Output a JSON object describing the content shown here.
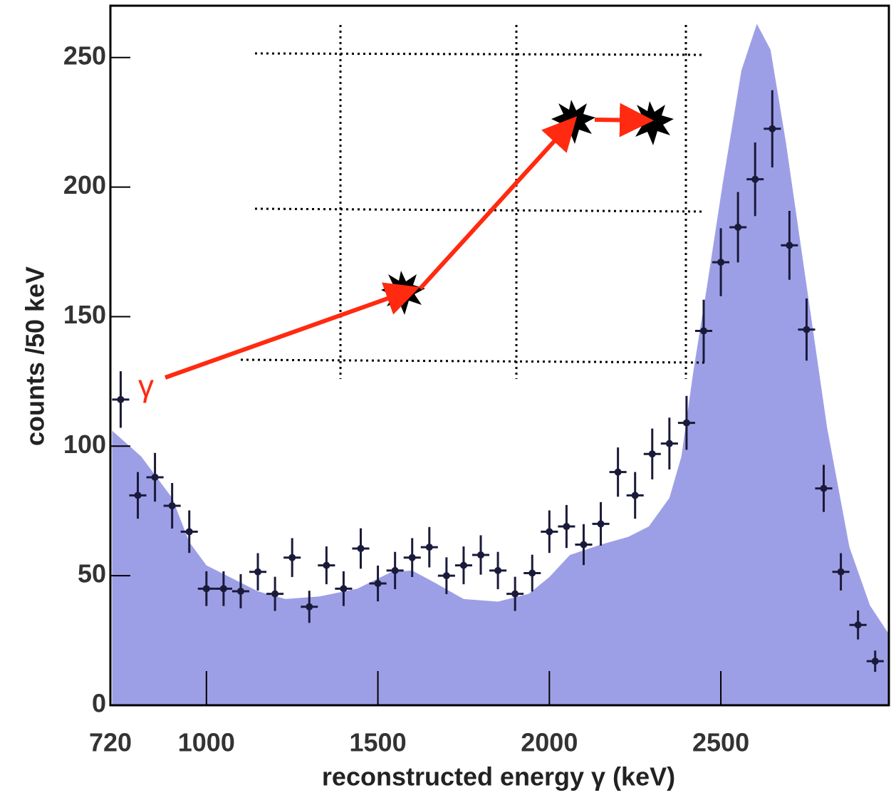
{
  "chart_data": {
    "type": "errorbar",
    "xlabel": "reconstructed energy γ (keV)",
    "ylabel": "counts /50 keV",
    "annotation": "γ",
    "xlim": [
      720,
      2990
    ],
    "ylim": [
      0,
      270
    ],
    "xticks": [
      720,
      1000,
      1500,
      2000,
      2500
    ],
    "yticks": [
      0,
      50,
      100,
      150,
      200,
      250
    ],
    "points": {
      "color": "#1a1a3a",
      "x": [
        750,
        800,
        850,
        900,
        950,
        1000,
        1050,
        1100,
        1150,
        1200,
        1250,
        1300,
        1350,
        1400,
        1450,
        1500,
        1550,
        1600,
        1650,
        1700,
        1750,
        1800,
        1850,
        1900,
        1950,
        2000,
        2050,
        2100,
        2150,
        2200,
        2250,
        2300,
        2350,
        2400,
        2450,
        2500,
        2550,
        2600,
        2650,
        2700,
        2750,
        2800,
        2850,
        2900,
        2950
      ],
      "values": [
        118,
        81,
        88,
        77,
        67,
        45,
        45,
        44,
        51.5,
        43,
        57,
        38,
        54,
        45,
        60.5,
        47,
        52,
        57,
        61,
        50,
        54,
        58,
        52,
        43,
        51,
        67,
        69,
        62,
        70,
        90,
        81,
        97,
        101,
        109,
        144.5,
        171,
        184.5,
        203,
        222.5,
        177.5,
        145,
        83.7,
        51.5,
        31,
        17
      ],
      "errors": [
        10.9,
        9,
        9.4,
        8.8,
        8.2,
        6.7,
        6.7,
        6.6,
        7.2,
        6.6,
        7.5,
        6.2,
        7.3,
        6.7,
        7.8,
        6.9,
        7.2,
        7.5,
        7.8,
        7.1,
        7.3,
        7.6,
        7.2,
        6.6,
        7.1,
        8.2,
        8.3,
        7.9,
        8.4,
        9.5,
        9,
        9.8,
        10,
        10.4,
        12,
        13.1,
        13.6,
        14.2,
        14.9,
        13.3,
        12,
        9.1,
        7.2,
        5.6,
        4.1
      ]
    },
    "area": {
      "color": "#9d9fe6",
      "x": [
        725,
        810,
        900,
        950,
        1000,
        1060,
        1150,
        1230,
        1330,
        1440,
        1540,
        1600,
        1670,
        1750,
        1850,
        1940,
        2000,
        2060,
        2150,
        2230,
        2290,
        2350,
        2385,
        2420,
        2460,
        2505,
        2560,
        2605,
        2645,
        2690,
        2750,
        2810,
        2875,
        2935,
        2990
      ],
      "values": [
        106,
        96,
        80,
        63,
        54,
        50,
        44,
        41,
        42,
        45,
        51.5,
        52,
        47,
        41,
        40,
        43,
        49.5,
        58,
        62,
        65,
        69,
        80,
        96,
        129,
        162,
        201,
        245,
        263,
        253,
        217,
        162,
        107,
        61,
        38.5,
        27.5
      ]
    }
  }
}
